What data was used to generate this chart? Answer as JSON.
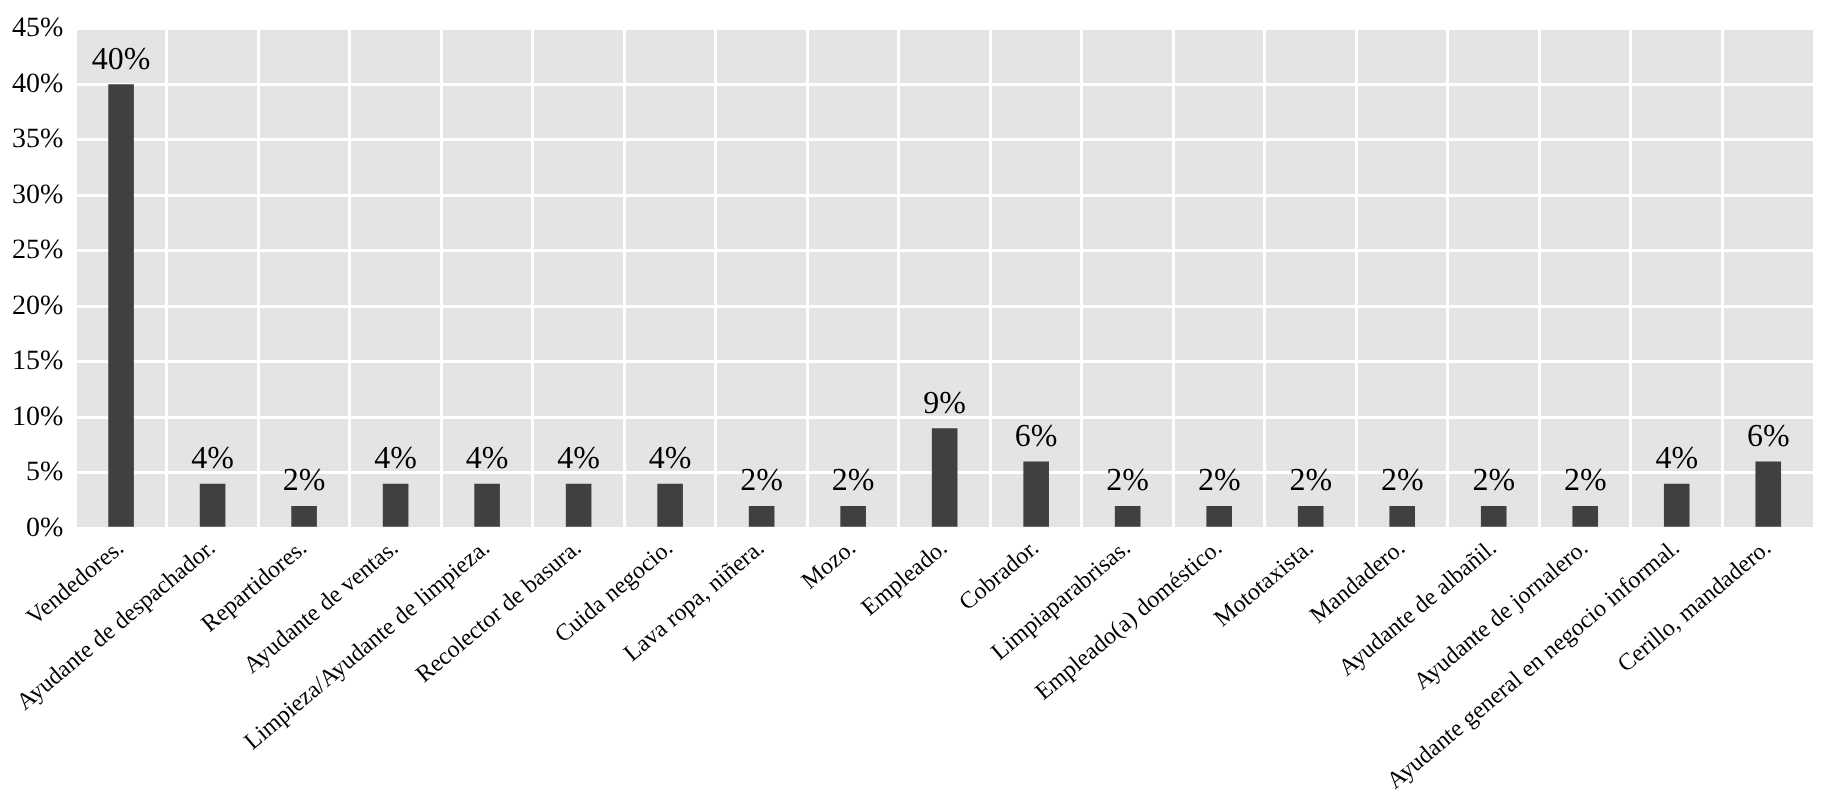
{
  "chart_data": {
    "type": "bar",
    "categories": [
      "Vendedores.",
      "Ayudante de despachador.",
      "Repartidores.",
      "Ayudante de ventas.",
      "Limpieza/Ayudante de limpieza.",
      "Recolector de basura.",
      "Cuida negocio.",
      "Lava ropa, niñera.",
      "Mozo.",
      "Empleado.",
      "Cobrador.",
      "Limpiaparabrisas.",
      "Empleado(a) doméstico.",
      "Mototaxista.",
      "Mandadero.",
      "Ayudante de albañil.",
      "Ayudante de jornalero.",
      "Ayudante general en negocio informal.",
      "Cerillo, mandadero."
    ],
    "values": [
      40,
      4,
      2,
      4,
      4,
      4,
      4,
      2,
      2,
      9,
      6,
      2,
      2,
      2,
      2,
      2,
      2,
      4,
      6
    ],
    "value_labels": [
      "40%",
      "4%",
      "2%",
      "4%",
      "4%",
      "4%",
      "4%",
      "2%",
      "2%",
      "9%",
      "6%",
      "2%",
      "2%",
      "2%",
      "2%",
      "2%",
      "2%",
      "4%",
      "6%"
    ],
    "color": "#404040",
    "ylim": [
      0,
      45
    ],
    "yticks": [
      {
        "value": 0,
        "label": "0%"
      },
      {
        "value": 5,
        "label": "5%"
      },
      {
        "value": 10,
        "label": "10%"
      },
      {
        "value": 15,
        "label": "15%"
      },
      {
        "value": 20,
        "label": "20%"
      },
      {
        "value": 25,
        "label": "25%"
      },
      {
        "value": 30,
        "label": "30%"
      },
      {
        "value": 35,
        "label": "35%"
      },
      {
        "value": 40,
        "label": "40%"
      },
      {
        "value": 45,
        "label": "45%"
      }
    ],
    "grid": true,
    "legend": false
  }
}
